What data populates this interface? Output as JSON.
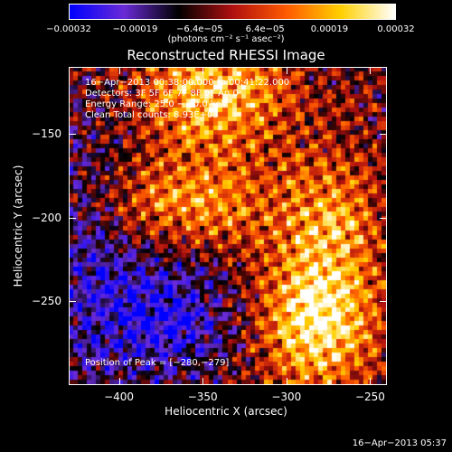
{
  "chart_data": {
    "type": "heatmap",
    "title": "Reconstructed RHESSI Image",
    "xlabel": "Heliocentric X (arcsec)",
    "ylabel": "Heliocentric Y (arcsec)",
    "xlim": [
      -430,
      -240
    ],
    "ylim": [
      -300,
      -110
    ],
    "x_ticks": [
      -400,
      -350,
      -300,
      -250
    ],
    "x_tick_labels": [
      "−400",
      "−350",
      "−300",
      "−250"
    ],
    "y_ticks": [
      -150,
      -200,
      -250
    ],
    "y_tick_labels": [
      "−150",
      "−200",
      "−250"
    ],
    "colorbar": {
      "range": [
        -0.00032,
        0.00032
      ],
      "tick_values": [
        -0.00032,
        -0.00019,
        -6.4e-05,
        6.4e-05,
        0.00019,
        0.00032
      ],
      "tick_labels": [
        "−0.00032",
        "−0.00019",
        "−6.4e−05",
        "6.4e−05",
        "0.00019",
        "0.00032"
      ],
      "units": "(photons cm⁻² s⁻¹ asec⁻²)",
      "colormap": [
        "#0000ff",
        "#6a2bd6",
        "#000000",
        "#b01010",
        "#ff5a00",
        "#ffd000",
        "#ffffff"
      ]
    },
    "peak_position": [
      -280,
      -279
    ]
  },
  "annotations": {
    "time_range": "16−Apr−2013 00:38:00.000 to 00:41:22.000",
    "detectors": "Detectors: 3F 5F 6F 7F 8F 9F An 0",
    "energy_range": "Energy Range: 25.0 − 50.0 keV",
    "clean": "Clean    Total counts: 8.93E+03",
    "peak": "Position of Peak = [−280,−279]"
  },
  "timestamp": "16−Apr−2013 05:37"
}
